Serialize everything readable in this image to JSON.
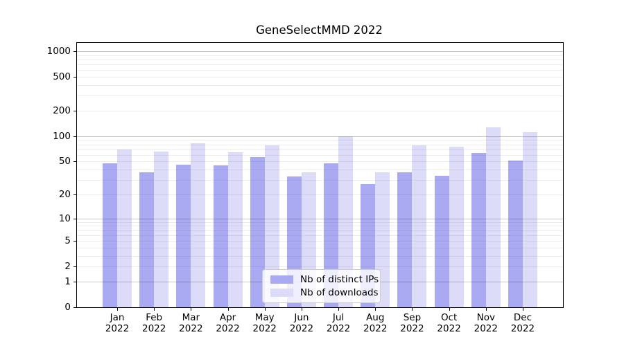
{
  "title": "GeneSelectMMD 2022",
  "chart_data": {
    "type": "bar",
    "title": "GeneSelectMMD 2022",
    "categories": [
      "Jan 2022",
      "Feb 2022",
      "Mar 2022",
      "Apr 2022",
      "May 2022",
      "Jun 2022",
      "Jul 2022",
      "Aug 2022",
      "Sep 2022",
      "Oct 2022",
      "Nov 2022",
      "Dec 2022"
    ],
    "series": [
      {
        "name": "Nb of distinct IPs",
        "color": "#aaaaf2",
        "values": [
          48,
          37,
          46,
          45,
          57,
          33,
          48,
          27,
          37,
          34,
          63,
          51
        ]
      },
      {
        "name": "Nb of downloads",
        "color": "#dcdcf8",
        "values": [
          70,
          66,
          83,
          64,
          78,
          37,
          100,
          37,
          78,
          75,
          128,
          112
        ]
      }
    ],
    "xlabel": "",
    "ylabel": "",
    "yscale": "log(v+1)",
    "ylim": [
      0,
      1260
    ],
    "y_tick_labels": [
      "0",
      "1",
      "2",
      "5",
      "10",
      "20",
      "50",
      "100",
      "200",
      "500",
      "1000"
    ],
    "y_tick_values": [
      0,
      1,
      2,
      5,
      10,
      20,
      50,
      100,
      200,
      500,
      1000
    ],
    "y_major_gridlines": [
      1,
      10,
      100,
      1000
    ],
    "y_minor_gridlines": [
      2,
      3,
      4,
      5,
      6,
      7,
      8,
      9,
      20,
      30,
      40,
      50,
      60,
      70,
      80,
      90,
      200,
      300,
      400,
      500,
      600,
      700,
      800,
      900
    ],
    "grid": true,
    "legend_position": "lower center",
    "legend_items": [
      "Nb of distinct IPs",
      "Nb of downloads"
    ]
  }
}
